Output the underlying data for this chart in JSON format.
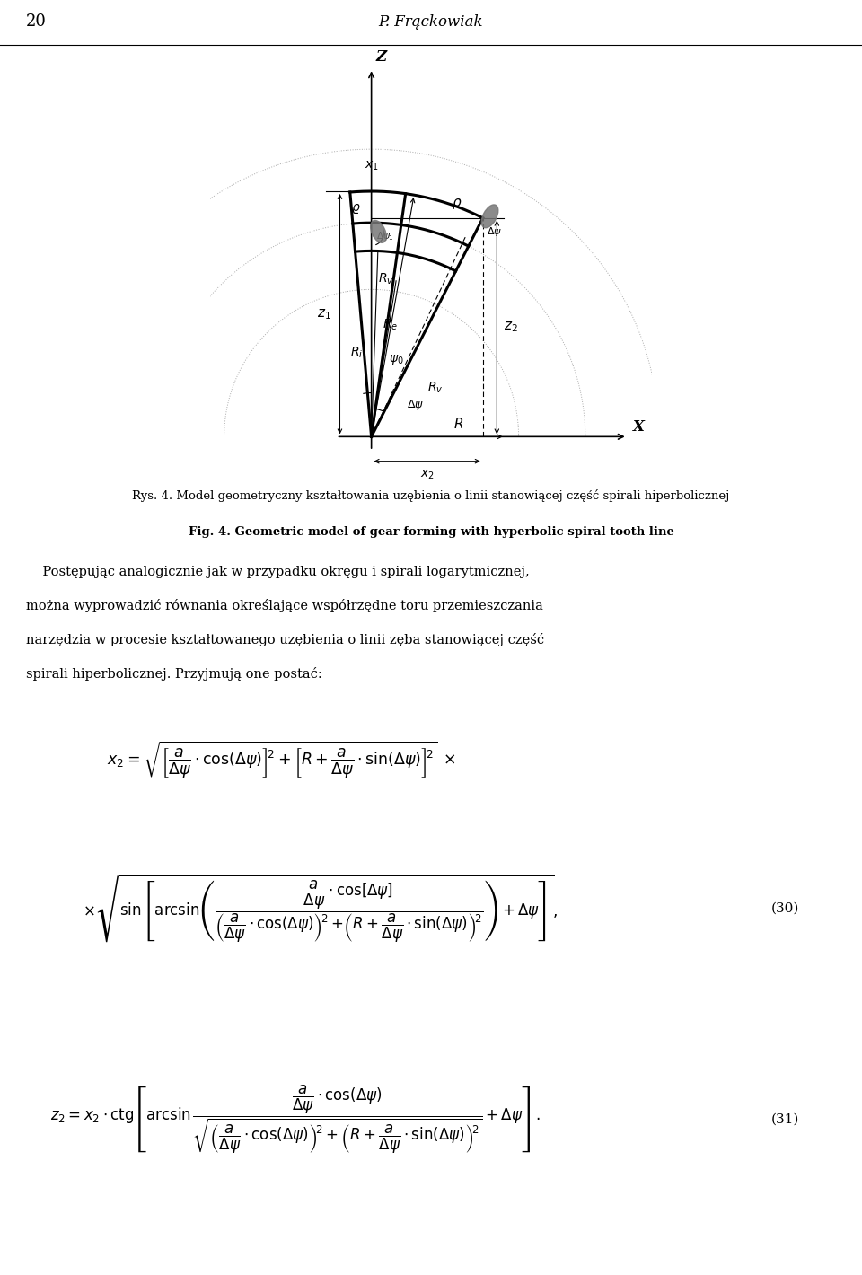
{
  "page_title": "20",
  "page_author": "P. Frąckowiak",
  "fig_caption_pl": "Rys. 4. Model geometryczny kształtowania uzębienia o linii stanowiącej część spirali hiperbolicznej",
  "fig_caption_en": "Fig. 4. Geometric model of gear forming with hyperbolic spiral tooth line",
  "para_lines": [
    "    Postępując analogicznie jak w przypadku okręgu i spirali logarytmicznej,",
    "można wyprowadzić równania określające współrzędne toru przemieszczania",
    "narzędzia w procesie kształtowanego uzębienia o linii zęba stanowiącej część",
    "spirali hiperbolicznej. Przyjmują one postać:"
  ],
  "eq30_label": "(30)",
  "eq31_label": "(31)",
  "background_color": "#ffffff",
  "text_color": "#000000"
}
